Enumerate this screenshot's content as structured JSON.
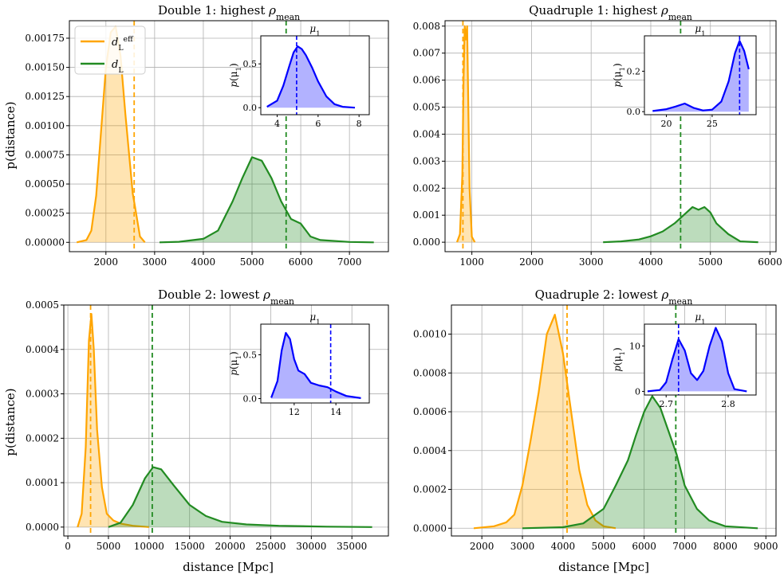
{
  "figure": {
    "xlabel": "distance [Mpc]",
    "ylabel": "p(distance)"
  },
  "legend": {
    "entries": [
      {
        "label": "d_L^eff",
        "color": "#ffa500"
      },
      {
        "label": "d_L",
        "color": "#228b22"
      }
    ]
  },
  "colors": {
    "orange": "#ffa500",
    "green": "#228b22",
    "blue": "#0000ff"
  },
  "chart_data": [
    {
      "type": "area",
      "title": "Double 1: highest ρ_mean",
      "xlabel": "",
      "ylabel": "p(distance)",
      "xlim": [
        1250,
        7800
      ],
      "ylim": [
        -8e-05,
        0.0019
      ],
      "xticks": [
        2000,
        3000,
        4000,
        5000,
        6000,
        7000
      ],
      "xtick_labels": [
        "2000",
        "3000",
        "4000",
        "5000",
        "6000",
        "7000"
      ],
      "yticks": [
        0,
        0.00025,
        0.0005,
        0.00075,
        0.001,
        0.00125,
        0.0015,
        0.00175
      ],
      "ytick_labels": [
        "0.00000",
        "0.00025",
        "0.00050",
        "0.00075",
        "0.00100",
        "0.00125",
        "0.00150",
        "0.00175"
      ],
      "series": [
        {
          "name": "d_L^eff",
          "color": "#ffa500",
          "x": [
            1400,
            1600,
            1700,
            1800,
            1900,
            2000,
            2100,
            2200,
            2300,
            2400,
            2500,
            2550,
            2600,
            2700,
            2800
          ],
          "y": [
            0,
            2e-05,
            0.0001,
            0.0004,
            0.00095,
            0.0015,
            0.0018,
            0.00185,
            0.0016,
            0.0011,
            0.00065,
            0.00042,
            0.0003,
            5e-05,
            0
          ]
        },
        {
          "name": "d_L",
          "color": "#228b22",
          "x": [
            3100,
            3500,
            4000,
            4300,
            4600,
            4800,
            5000,
            5200,
            5400,
            5600,
            5800,
            6000,
            6200,
            6400,
            7000,
            7500
          ],
          "y": [
            0,
            5e-06,
            3e-05,
            0.0001,
            0.00035,
            0.00055,
            0.00073,
            0.0007,
            0.00055,
            0.00035,
            0.0002,
            0.00016,
            5e-05,
            2e-05,
            3e-06,
            0
          ]
        }
      ],
      "vlines": [
        {
          "x": 2580,
          "color": "#ffa500"
        },
        {
          "x": 5700,
          "color": "#228b22"
        }
      ],
      "inset": {
        "title": "μ_1",
        "ylabel": "p(μ_1)",
        "xlim": [
          3.2,
          8.5
        ],
        "ylim": [
          -0.08,
          0.82
        ],
        "xticks": [
          4,
          6,
          8
        ],
        "xtick_labels": [
          "4",
          "6",
          "8"
        ],
        "yticks": [
          0,
          0.5
        ],
        "ytick_labels": [
          "0.0",
          "0.5"
        ],
        "x": [
          3.5,
          4.0,
          4.3,
          4.6,
          4.8,
          5.0,
          5.2,
          5.4,
          5.7,
          6.0,
          6.4,
          6.8,
          7.2,
          7.8
        ],
        "y": [
          0.01,
          0.08,
          0.25,
          0.48,
          0.63,
          0.7,
          0.67,
          0.6,
          0.46,
          0.3,
          0.13,
          0.04,
          0.01,
          0
        ],
        "vline": 4.95
      }
    },
    {
      "type": "area",
      "title": "Quadruple 1: highest ρ_mean",
      "xlabel": "",
      "ylabel": "",
      "xlim": [
        550,
        6100
      ],
      "ylim": [
        -0.00035,
        0.0082
      ],
      "xticks": [
        1000,
        2000,
        3000,
        4000,
        5000,
        6000
      ],
      "xtick_labels": [
        "1000",
        "2000",
        "3000",
        "4000",
        "5000",
        "6000"
      ],
      "yticks": [
        0,
        0.001,
        0.002,
        0.003,
        0.004,
        0.005,
        0.006,
        0.007,
        0.008
      ],
      "ytick_labels": [
        "0.000",
        "0.001",
        "0.002",
        "0.003",
        "0.004",
        "0.005",
        "0.006",
        "0.007",
        "0.008"
      ],
      "series": [
        {
          "name": "d_L^eff",
          "color": "#ffa500",
          "x": [
            750,
            800,
            840,
            860,
            880,
            900,
            920,
            940,
            960,
            1000,
            1050
          ],
          "y": [
            0,
            0.0003,
            0.0025,
            0.006,
            0.008,
            0.0075,
            0.008,
            0.005,
            0.002,
            0.0002,
            0
          ]
        },
        {
          "name": "d_L",
          "color": "#228b22",
          "x": [
            3200,
            3500,
            3800,
            4000,
            4200,
            4400,
            4600,
            4700,
            4800,
            4900,
            5000,
            5100,
            5300,
            5500,
            5800
          ],
          "y": [
            0,
            3e-05,
            0.0001,
            0.00022,
            0.0004,
            0.0007,
            0.0011,
            0.0013,
            0.0012,
            0.0013,
            0.0011,
            0.0007,
            0.0003,
            3e-05,
            0
          ]
        }
      ],
      "vlines": [
        {
          "x": 850,
          "color": "#ffa500"
        },
        {
          "x": 4500,
          "color": "#228b22"
        }
      ],
      "inset": {
        "title": "μ_1",
        "ylabel": "p(μ_1)",
        "xlim": [
          17.6,
          29.8
        ],
        "ylim": [
          -0.015,
          0.375
        ],
        "xticks": [
          20,
          25
        ],
        "xtick_labels": [
          "20",
          "25"
        ],
        "yticks": [
          0,
          0.2
        ],
        "ytick_labels": [
          "0.0",
          "0.2"
        ],
        "x": [
          18.5,
          20.0,
          21.0,
          22.0,
          23.0,
          24.0,
          25.0,
          26.0,
          26.8,
          27.5,
          28.0,
          28.5,
          29.0
        ],
        "y": [
          0.003,
          0.012,
          0.025,
          0.04,
          0.018,
          0.006,
          0.01,
          0.05,
          0.15,
          0.29,
          0.35,
          0.3,
          0.21
        ],
        "vline": 28.0
      }
    },
    {
      "type": "area",
      "title": "Double 2: lowest ρ_mean",
      "xlabel": "distance [Mpc]",
      "ylabel": "p(distance)",
      "xlim": [
        -500,
        39500
      ],
      "ylim": [
        -2e-05,
        0.0005
      ],
      "xticks": [
        0,
        5000,
        10000,
        15000,
        20000,
        25000,
        30000,
        35000
      ],
      "xtick_labels": [
        "0",
        "5000",
        "10000",
        "15000",
        "20000",
        "25000",
        "30000",
        "35000"
      ],
      "yticks": [
        0,
        0.0001,
        0.0002,
        0.0003,
        0.0004,
        0.0005
      ],
      "ytick_labels": [
        "0.0000",
        "0.0001",
        "0.0002",
        "0.0003",
        "0.0004",
        "0.0005"
      ],
      "series": [
        {
          "name": "d_L^eff",
          "color": "#ffa500",
          "x": [
            1200,
            1700,
            2200,
            2600,
            2900,
            3200,
            3600,
            4200,
            4800,
            5600,
            6500,
            8000,
            10000
          ],
          "y": [
            0,
            3e-05,
            0.00018,
            0.00042,
            0.00048,
            0.0004,
            0.00022,
            9e-05,
            3e-05,
            1.5e-05,
            8e-06,
            3e-06,
            0
          ]
        },
        {
          "name": "d_L",
          "color": "#228b22",
          "x": [
            5000,
            6500,
            8000,
            9500,
            10500,
            11500,
            13000,
            15000,
            17000,
            19000,
            22000,
            26000,
            32000,
            37500
          ],
          "y": [
            0,
            1e-05,
            5e-05,
            0.00011,
            0.000135,
            0.00013,
            9.5e-05,
            5e-05,
            2.5e-05,
            1.2e-05,
            6e-06,
            3e-06,
            1e-06,
            0
          ]
        }
      ],
      "vlines": [
        {
          "x": 2800,
          "color": "#ffa500"
        },
        {
          "x": 10400,
          "color": "#228b22"
        }
      ],
      "inset": {
        "title": "μ_1",
        "ylabel": "p(μ_1)",
        "xlim": [
          10.4,
          15.6
        ],
        "ylim": [
          -0.05,
          0.85
        ],
        "xticks": [
          12,
          14
        ],
        "xtick_labels": [
          "12",
          "14"
        ],
        "yticks": [
          0,
          0.5
        ],
        "ytick_labels": [
          "0.0",
          "0.5"
        ],
        "x": [
          10.9,
          11.2,
          11.4,
          11.6,
          11.8,
          12.0,
          12.2,
          12.5,
          12.8,
          13.2,
          13.6,
          14.0,
          14.5,
          15.2
        ],
        "y": [
          0.01,
          0.2,
          0.55,
          0.75,
          0.68,
          0.45,
          0.32,
          0.28,
          0.18,
          0.15,
          0.13,
          0.08,
          0.03,
          0.005
        ],
        "vline": 13.75
      }
    },
    {
      "type": "area",
      "title": "Quadruple 2: lowest ρ_mean",
      "xlabel": "distance [Mpc]",
      "ylabel": "",
      "xlim": [
        1250,
        9250
      ],
      "ylim": [
        -4e-05,
        0.00115
      ],
      "xticks": [
        2000,
        3000,
        4000,
        5000,
        6000,
        7000,
        8000,
        9000
      ],
      "xtick_labels": [
        "2000",
        "3000",
        "4000",
        "5000",
        "6000",
        "7000",
        "8000",
        "9000"
      ],
      "yticks": [
        0,
        0.0002,
        0.0004,
        0.0006,
        0.0008,
        0.001
      ],
      "ytick_labels": [
        "0.0000",
        "0.0002",
        "0.0004",
        "0.0006",
        "0.0008",
        "0.0010"
      ],
      "series": [
        {
          "name": "d_L^eff",
          "color": "#ffa500",
          "x": [
            1800,
            2300,
            2600,
            2800,
            3000,
            3200,
            3400,
            3600,
            3800,
            4000,
            4200,
            4400,
            4600,
            4800,
            5000,
            5300
          ],
          "y": [
            0,
            1e-05,
            3e-05,
            7e-05,
            0.00022,
            0.00045,
            0.0007,
            0.001,
            0.0011,
            0.0009,
            0.0006,
            0.0003,
            0.00012,
            4e-05,
            1e-05,
            0
          ]
        },
        {
          "name": "d_L",
          "color": "#228b22",
          "x": [
            3000,
            4000,
            4500,
            5000,
            5300,
            5600,
            5800,
            6000,
            6200,
            6400,
            6600,
            6800,
            7000,
            7300,
            7600,
            8000,
            8800
          ],
          "y": [
            0,
            5e-06,
            2.5e-05,
            0.0001,
            0.00022,
            0.00035,
            0.00048,
            0.0006,
            0.00068,
            0.00062,
            0.0005,
            0.00038,
            0.00022,
            0.0001,
            4e-05,
            1e-05,
            0
          ]
        }
      ],
      "vlines": [
        {
          "x": 4100,
          "color": "#ffa500"
        },
        {
          "x": 6780,
          "color": "#228b22"
        }
      ],
      "inset": {
        "title": "μ_1",
        "ylabel": "p(μ_1)",
        "xlim": [
          2.665,
          2.845
        ],
        "ylim": [
          -0.8,
          14.8
        ],
        "xticks": [
          2.7,
          2.8
        ],
        "xtick_labels": [
          "2.7",
          "2.8"
        ],
        "yticks": [
          0,
          10
        ],
        "ytick_labels": [
          "0",
          "10"
        ],
        "x": [
          2.67,
          2.69,
          2.7,
          2.71,
          2.72,
          2.73,
          2.74,
          2.75,
          2.76,
          2.77,
          2.78,
          2.79,
          2.8,
          2.81,
          2.83
        ],
        "y": [
          0,
          0.3,
          2.0,
          7.0,
          11.5,
          9.0,
          4.0,
          2.5,
          4.5,
          10.0,
          14.0,
          11.0,
          4.0,
          0.5,
          0
        ],
        "vline": 2.72
      }
    }
  ]
}
